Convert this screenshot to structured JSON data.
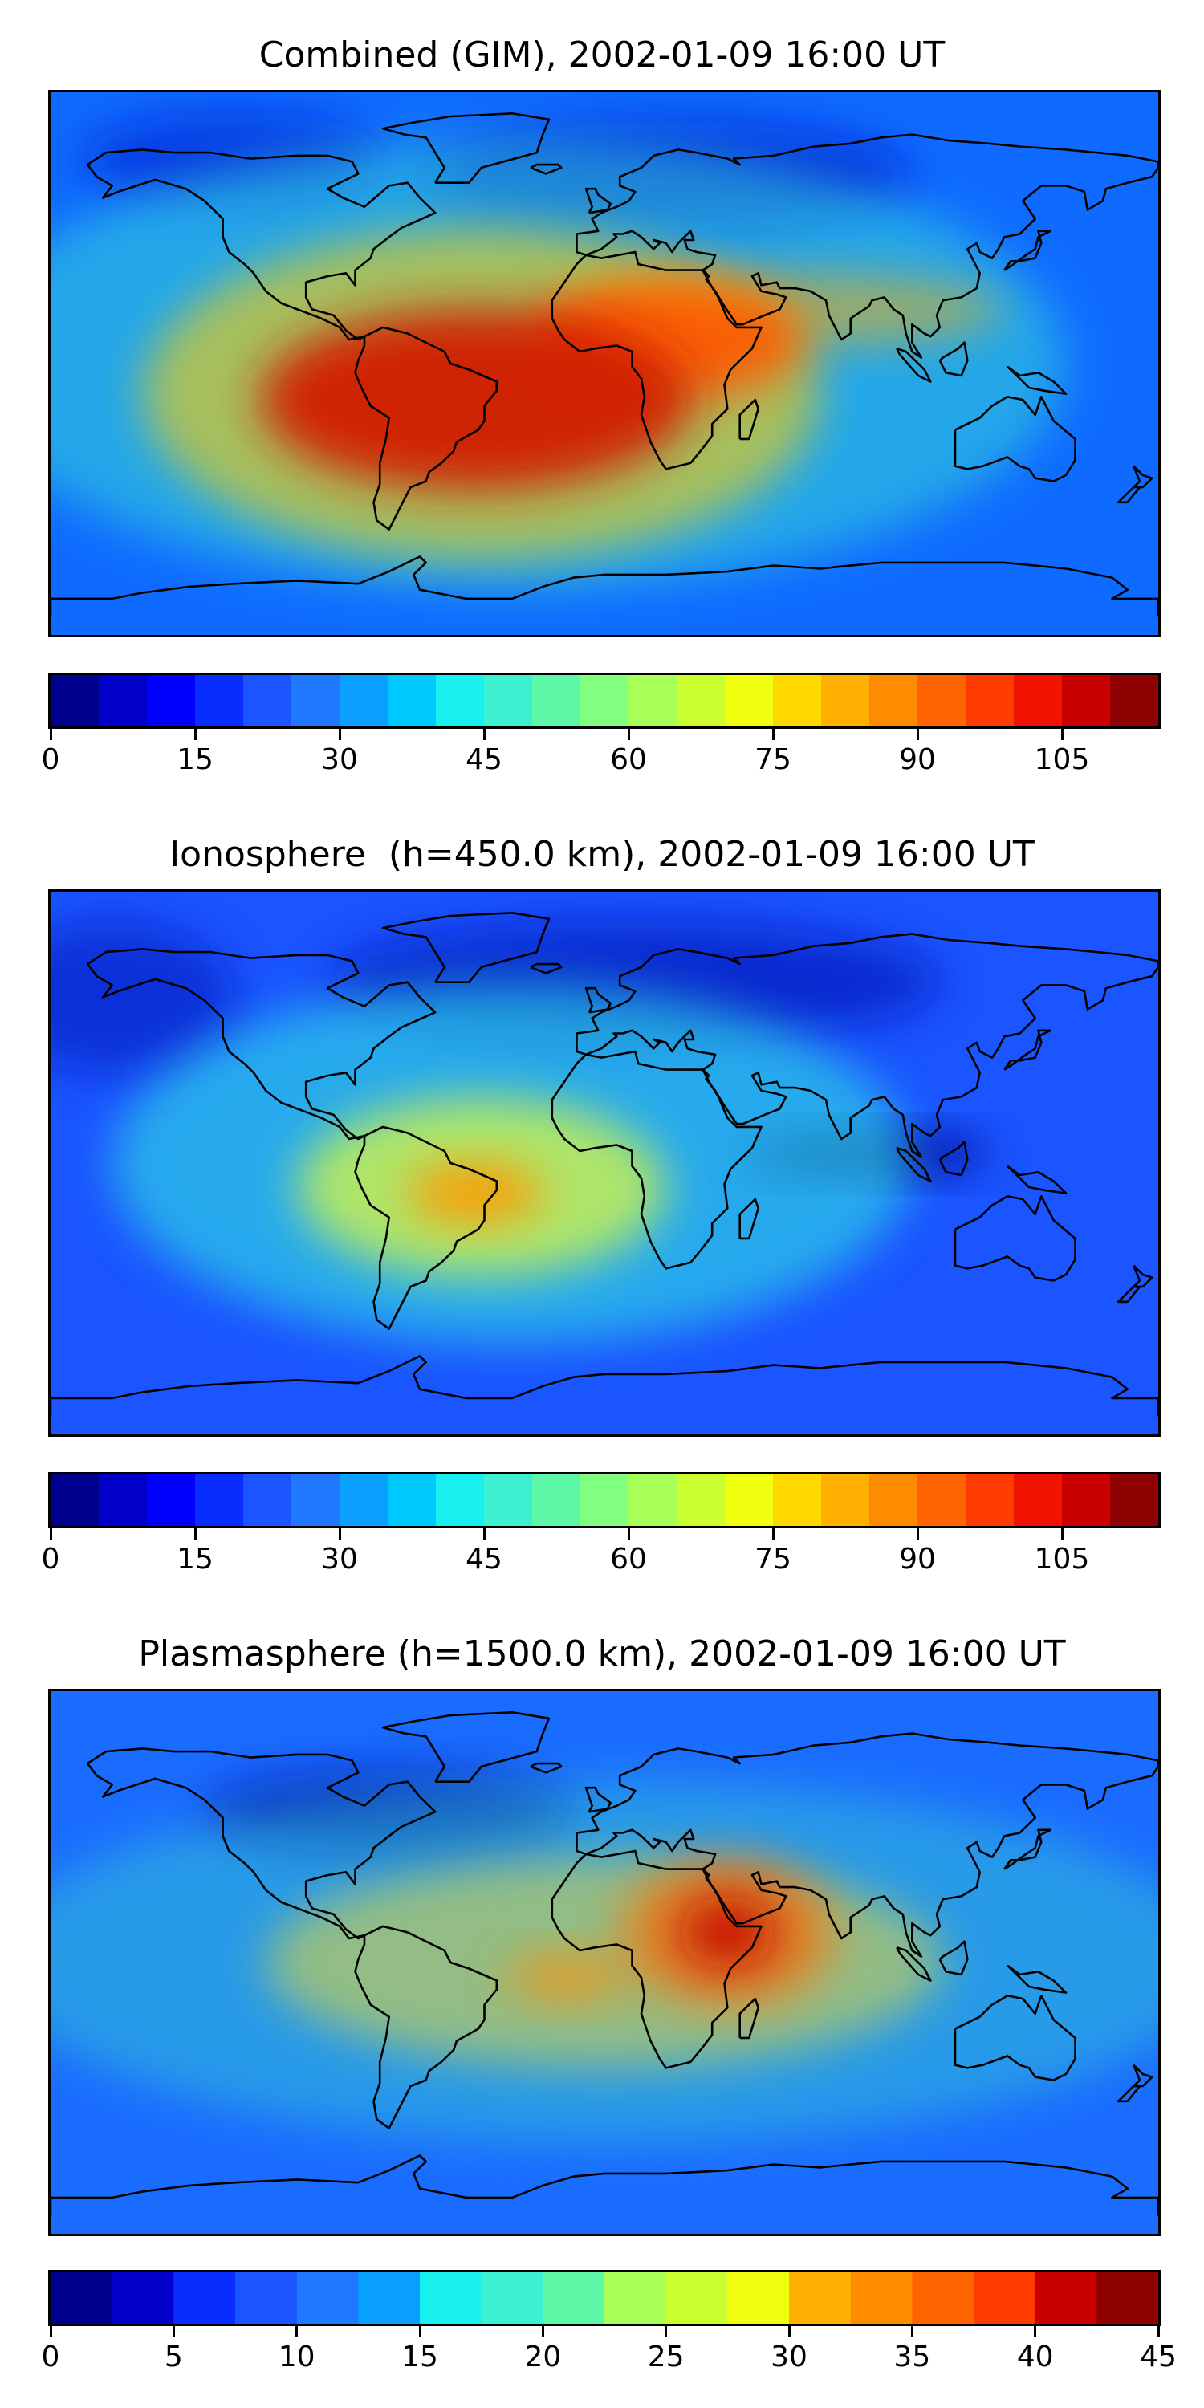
{
  "panels": [
    {
      "title": "Combined (GIM), 2002-01-09 16:00 UT",
      "colorbar": {
        "min": 0,
        "max": 115,
        "levels": 23,
        "ticks": [
          "0",
          "15",
          "30",
          "45",
          "60",
          "75",
          "90",
          "105"
        ],
        "tick_values": [
          0,
          15,
          30,
          45,
          60,
          75,
          90,
          105
        ]
      },
      "field": {
        "background": "#0f6bff",
        "blobs": [
          {
            "lon": -42,
            "lat": -12,
            "rx": 70,
            "ry": 30,
            "color": "#d21a00",
            "opacity": 0.95
          },
          {
            "lon": 20,
            "lat": 8,
            "rx": 45,
            "ry": 20,
            "color": "#ff5500",
            "opacity": 0.9
          },
          {
            "lon": -40,
            "lat": -10,
            "rx": 110,
            "ry": 55,
            "color": "#ffd000",
            "opacity": 0.6
          },
          {
            "lon": 60,
            "lat": 18,
            "rx": 70,
            "ry": 12,
            "color": "#ffb000",
            "opacity": 0.55
          },
          {
            "lon": -30,
            "lat": 0,
            "rx": 180,
            "ry": 75,
            "color": "#3cf0d0",
            "opacity": 0.45
          },
          {
            "lon": 20,
            "lat": 62,
            "rx": 80,
            "ry": 18,
            "color": "#0010c8",
            "opacity": 0.6
          },
          {
            "lon": -120,
            "lat": 68,
            "rx": 50,
            "ry": 15,
            "color": "#0010c8",
            "opacity": 0.5
          }
        ]
      }
    },
    {
      "title": "Ionosphere  (h=450.0 km), 2002-01-09 16:00 UT",
      "colorbar": {
        "min": 0,
        "max": 115,
        "levels": 23,
        "ticks": [
          "0",
          "15",
          "30",
          "45",
          "60",
          "75",
          "90",
          "105"
        ],
        "tick_values": [
          0,
          15,
          30,
          45,
          60,
          75,
          90,
          105
        ]
      },
      "field": {
        "background": "#1a55ff",
        "blobs": [
          {
            "lon": -42,
            "lat": -10,
            "rx": 22,
            "ry": 10,
            "color": "#ff9a00",
            "opacity": 0.95
          },
          {
            "lon": -40,
            "lat": -8,
            "rx": 60,
            "ry": 30,
            "color": "#e8ff30",
            "opacity": 0.7
          },
          {
            "lon": -30,
            "lat": 0,
            "rx": 130,
            "ry": 60,
            "color": "#30f0e0",
            "opacity": 0.55
          },
          {
            "lon": 85,
            "lat": 3,
            "rx": 40,
            "ry": 7,
            "color": "#00008c",
            "opacity": 0.9
          },
          {
            "lon": 10,
            "lat": 60,
            "rx": 100,
            "ry": 20,
            "color": "#0008b0",
            "opacity": 0.6
          },
          {
            "lon": -160,
            "lat": 55,
            "rx": 40,
            "ry": 25,
            "color": "#0008b0",
            "opacity": 0.5
          }
        ]
      }
    },
    {
      "title": "Plasmasphere (h=1500.0 km), 2002-01-09 16:00 UT",
      "colorbar": {
        "min": 0,
        "max": 45,
        "levels": 18,
        "ticks": [
          "0",
          "5",
          "10",
          "15",
          "20",
          "25",
          "30",
          "35",
          "40",
          "45"
        ],
        "tick_values": [
          0,
          5,
          10,
          15,
          20,
          25,
          30,
          35,
          40,
          45
        ]
      },
      "field": {
        "background": "#1a6cff",
        "blobs": [
          {
            "lon": 40,
            "lat": 10,
            "rx": 16,
            "ry": 12,
            "color": "#c80a00",
            "opacity": 0.95
          },
          {
            "lon": 40,
            "lat": 10,
            "rx": 35,
            "ry": 25,
            "color": "#ff7000",
            "opacity": 0.7
          },
          {
            "lon": -12,
            "lat": -5,
            "rx": 20,
            "ry": 8,
            "color": "#ff9000",
            "opacity": 0.7
          },
          {
            "lon": 0,
            "lat": 0,
            "rx": 110,
            "ry": 35,
            "color": "#ffe020",
            "opacity": 0.5
          },
          {
            "lon": 0,
            "lat": 0,
            "rx": 200,
            "ry": 60,
            "color": "#40f0c0",
            "opacity": 0.35
          },
          {
            "lon": -70,
            "lat": 50,
            "rx": 60,
            "ry": 14,
            "color": "#0008a0",
            "opacity": 0.6
          }
        ]
      }
    }
  ],
  "jet_colors": [
    "#00008f",
    "#0000c8",
    "#0000ff",
    "#0a2dff",
    "#1a55ff",
    "#1f78ff",
    "#0aa0ff",
    "#00c8ff",
    "#18f0f0",
    "#3cf0d0",
    "#5cf8a8",
    "#80ff80",
    "#a8ff58",
    "#ccff30",
    "#f0ff10",
    "#ffd800",
    "#ffb000",
    "#ff8c00",
    "#ff6400",
    "#ff3c00",
    "#f01400",
    "#c80000",
    "#8f0000"
  ],
  "icons": {
    "coastline": "coastline-outline"
  }
}
